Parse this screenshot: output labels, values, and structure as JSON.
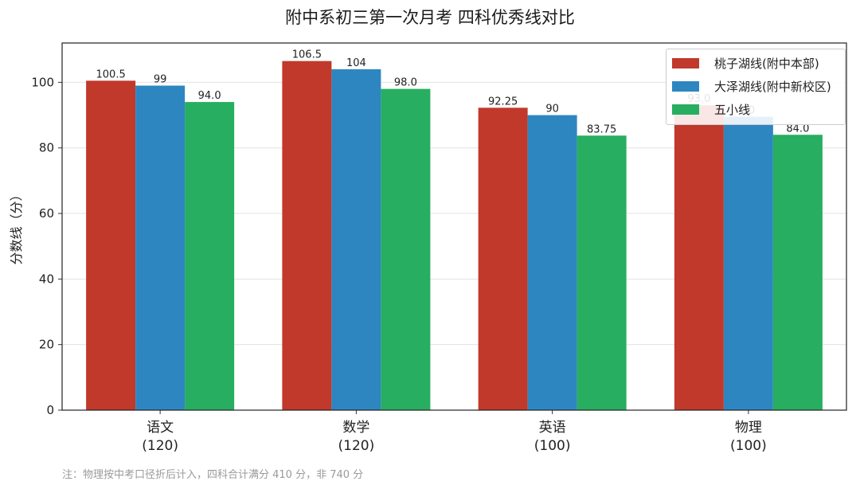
{
  "page": {
    "note": "注：物理按中考口径折后计入，四科合计满分 410 分，非 740 分"
  },
  "chart_data": {
    "type": "bar",
    "title": "附中系初三第一次月考 四科优秀线对比",
    "xlabel": "",
    "ylabel": "分数线（分）",
    "categories": [
      [
        "语文",
        "(120)"
      ],
      [
        "数学",
        "(120)"
      ],
      [
        "英语",
        "(100)"
      ],
      [
        "物理",
        "(100)"
      ]
    ],
    "ylim": [
      0,
      112
    ],
    "yticks": [
      "0",
      "20",
      "40",
      "60",
      "80",
      "100"
    ],
    "grid": "horizontal",
    "legend_position": "top-right",
    "series": [
      {
        "name": "桃子湖线(附中本部)",
        "color": "#c0392b",
        "values": [
          100.5,
          106.5,
          92.25,
          93.0
        ],
        "labels": [
          "100.5",
          "106.5",
          "92.25",
          "93.0"
        ]
      },
      {
        "name": "大泽湖线(附中新校区)",
        "color": "#2e86c1",
        "values": [
          99,
          104,
          90,
          89.5
        ],
        "labels": [
          "99",
          "104",
          "90",
          "90"
        ]
      },
      {
        "name": "五小线",
        "color": "#27ae60",
        "values": [
          94.0,
          98.0,
          83.75,
          84.0
        ],
        "labels": [
          "94.0",
          "98.0",
          "83.75",
          "84.0"
        ]
      }
    ]
  }
}
